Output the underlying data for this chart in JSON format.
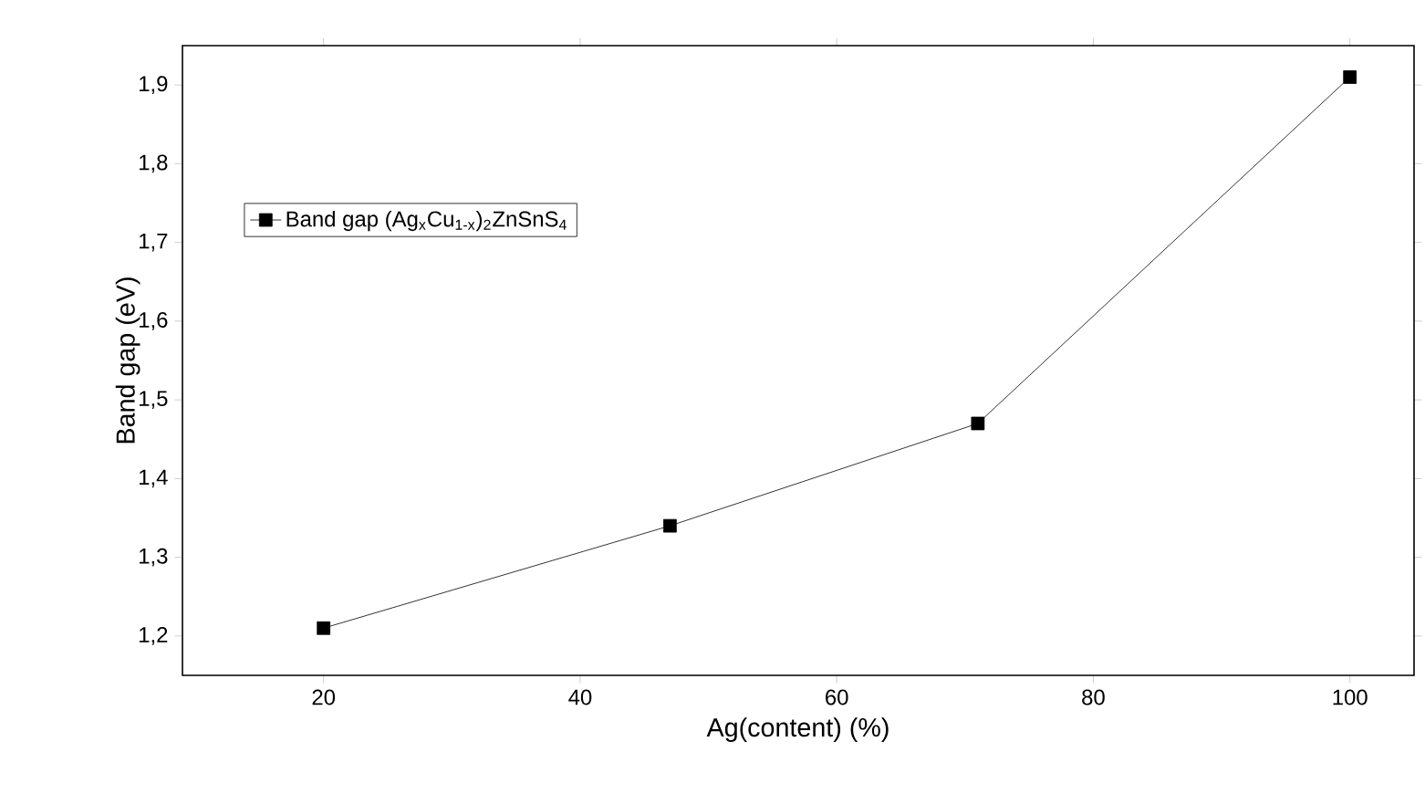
{
  "chart_data": {
    "type": "line",
    "x": [
      20,
      47,
      71,
      100
    ],
    "series": [
      {
        "name": "Band gap (Ag$_{x}$Cu$_{1-x}$)$_{2}$ZnSnS$_{4}$",
        "color": "#000000",
        "values": [
          1.21,
          1.34,
          1.47,
          1.91
        ]
      }
    ],
    "xlabel": "Ag(content) (%)",
    "ylabel": "Band gap (eV)",
    "xlim": [
      9,
      105
    ],
    "ylim": [
      1.15,
      1.95
    ],
    "xticks": [
      20,
      40,
      60,
      80,
      100
    ],
    "yticks": [
      {
        "value": 1.2,
        "label": "1,2"
      },
      {
        "value": 1.3,
        "label": "1,3"
      },
      {
        "value": 1.4,
        "label": "1,4"
      },
      {
        "value": 1.5,
        "label": "1,5"
      },
      {
        "value": 1.6,
        "label": "1,6"
      },
      {
        "value": 1.7,
        "label": "1,7"
      },
      {
        "value": 1.8,
        "label": "1,8"
      },
      {
        "value": 1.9,
        "label": "1,9"
      }
    ],
    "marker": "square",
    "line_style": "solid",
    "legend": "top left",
    "grid": false
  }
}
